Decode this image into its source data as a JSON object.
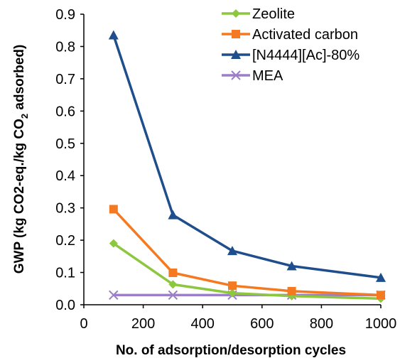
{
  "chart_data": {
    "type": "line",
    "title": "",
    "xlabel": "No. of adsorption/desorption cycles",
    "ylabel": "GWP (kg CO2-eq./kg CO₂ adsorbed)",
    "ylabel_parts": [
      "GWP (kg CO2-eq./kg CO",
      "2",
      " adsorbed)"
    ],
    "xlim": [
      0,
      1000
    ],
    "ylim": [
      0,
      0.9
    ],
    "xticks": [
      0,
      200,
      400,
      600,
      800,
      1000
    ],
    "yticks": [
      0.0,
      0.1,
      0.2,
      0.3,
      0.4,
      0.5,
      0.6,
      0.7,
      0.8,
      0.9
    ],
    "xtick_labels": [
      "0",
      "200",
      "400",
      "600",
      "800",
      "1000"
    ],
    "ytick_labels": [
      "0.0",
      "0.1",
      "0.2",
      "0.3",
      "0.4",
      "0.5",
      "0.6",
      "0.7",
      "0.8",
      "0.9"
    ],
    "grid": false,
    "legend_position": "top-right",
    "x": [
      100,
      300,
      500,
      700,
      1000
    ],
    "series": [
      {
        "name": "Zeolite",
        "values": [
          0.19,
          0.063,
          0.036,
          0.027,
          0.019
        ],
        "color": "#8dc63f",
        "marker": "diamond"
      },
      {
        "name": "Activated carbon",
        "values": [
          0.296,
          0.099,
          0.059,
          0.042,
          0.03
        ],
        "color": "#f47920",
        "marker": "square"
      },
      {
        "name": "[N4444][Ac]-80%",
        "values": [
          0.835,
          0.278,
          0.167,
          0.12,
          0.084
        ],
        "color": "#1f4e8c",
        "marker": "triangle"
      },
      {
        "name": "MEA",
        "values": [
          0.03,
          0.03,
          0.03,
          0.03,
          0.03
        ],
        "color": "#9b7fc8",
        "marker": "x"
      }
    ]
  }
}
